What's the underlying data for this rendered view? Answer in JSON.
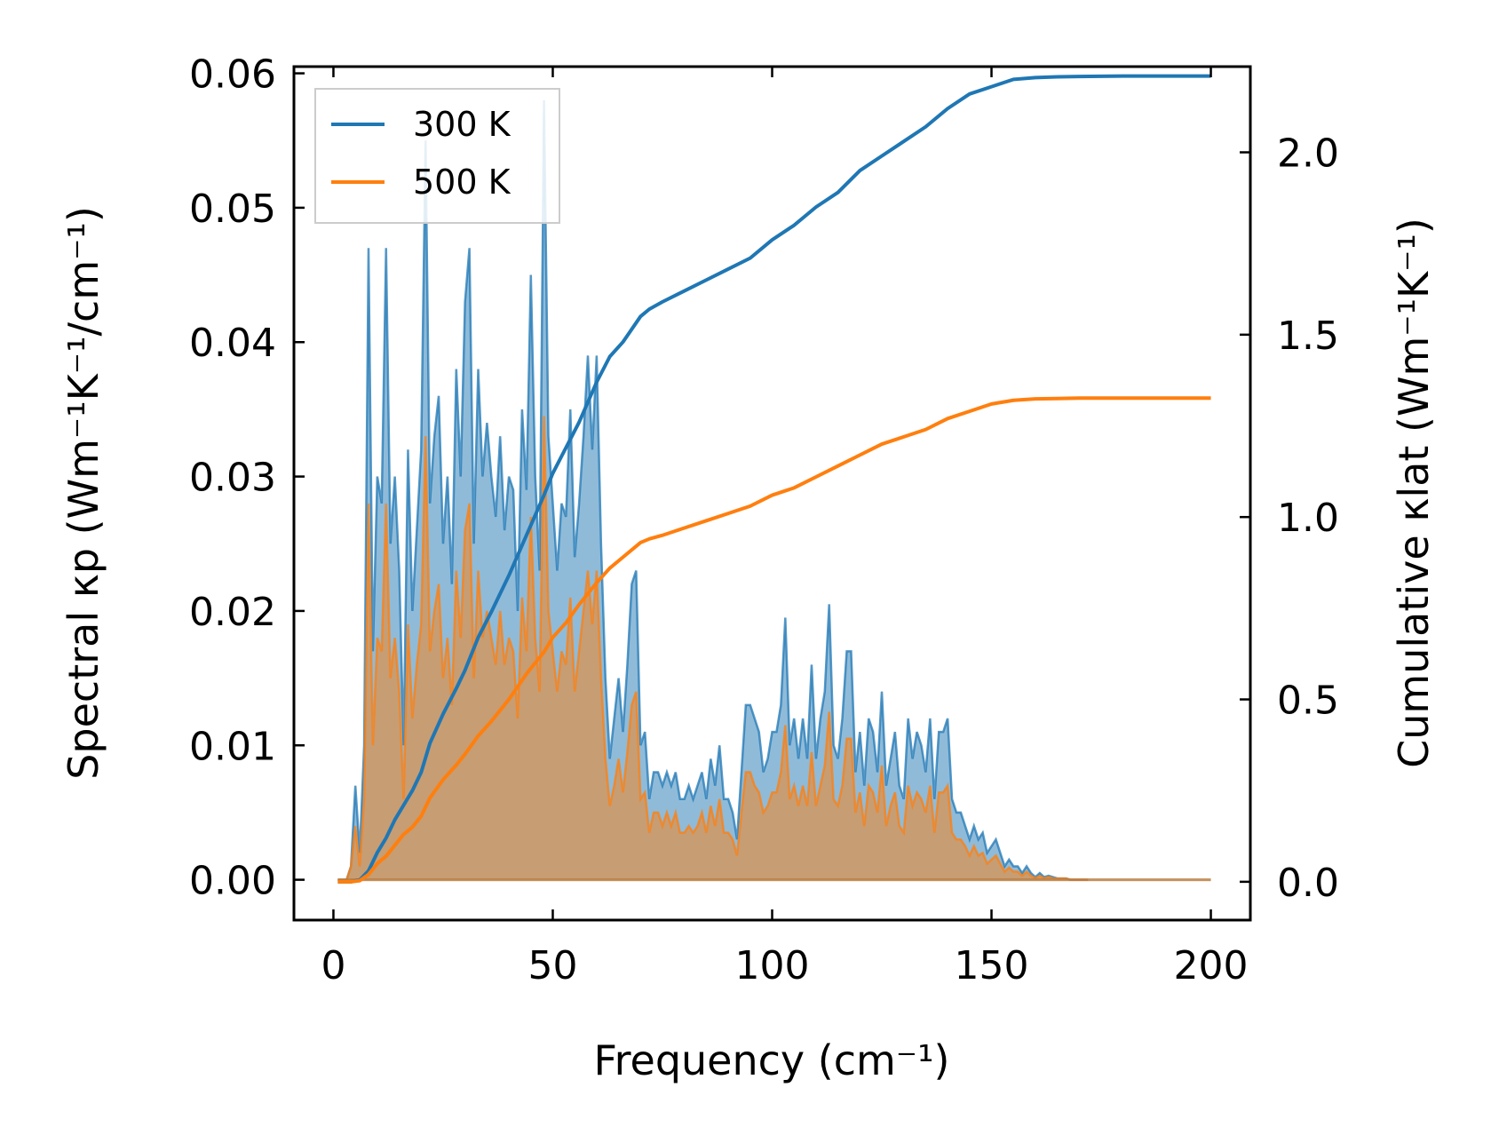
{
  "chart_data": {
    "type": "line",
    "title": "",
    "xlabel": "Frequency (cm⁻¹)",
    "ylabel_left": "Spectral κp (Wm⁻¹K⁻¹/cm⁻¹)",
    "ylabel_right": "Cumulative κlat (Wm⁻¹K⁻¹)",
    "xlim": [
      -9,
      209
    ],
    "ylim_left": [
      -0.003,
      0.0605
    ],
    "ylim_right": [
      -0.105,
      2.235
    ],
    "xticks": [
      0,
      50,
      100,
      150,
      200
    ],
    "xtick_labels": [
      "0",
      "50",
      "100",
      "150",
      "200"
    ],
    "yticks_left": [
      0.0,
      0.01,
      0.02,
      0.03,
      0.04,
      0.05,
      0.06
    ],
    "ytick_labels_left": [
      "0.00",
      "0.01",
      "0.02",
      "0.03",
      "0.04",
      "0.05",
      "0.06"
    ],
    "yticks_right": [
      0.0,
      0.5,
      1.0,
      1.5,
      2.0
    ],
    "ytick_labels_right": [
      "0.0",
      "0.5",
      "1.0",
      "1.5",
      "2.0"
    ],
    "legend_position": "top-left",
    "legend": [
      "300 K",
      "500 K"
    ],
    "spectral_x": [
      1,
      2,
      3,
      4,
      5,
      6,
      7,
      8,
      9,
      10,
      11,
      12,
      13,
      14,
      15,
      16,
      17,
      18,
      19,
      20,
      21,
      22,
      23,
      24,
      25,
      26,
      27,
      28,
      29,
      30,
      31,
      32,
      33,
      34,
      35,
      36,
      37,
      38,
      39,
      40,
      41,
      42,
      43,
      44,
      45,
      46,
      47,
      48,
      49,
      50,
      51,
      52,
      53,
      54,
      55,
      56,
      57,
      58,
      59,
      60,
      61,
      62,
      63,
      64,
      65,
      66,
      67,
      68,
      69,
      70,
      71,
      72,
      73,
      74,
      75,
      76,
      77,
      78,
      79,
      80,
      81,
      82,
      83,
      84,
      85,
      86,
      87,
      88,
      89,
      90,
      91,
      92,
      93,
      94,
      95,
      96,
      97,
      98,
      99,
      100,
      101,
      102,
      103,
      104,
      105,
      106,
      107,
      108,
      109,
      110,
      111,
      112,
      113,
      114,
      115,
      116,
      117,
      118,
      119,
      120,
      121,
      122,
      123,
      124,
      125,
      126,
      127,
      128,
      129,
      130,
      131,
      132,
      133,
      134,
      135,
      136,
      137,
      138,
      139,
      140,
      141,
      142,
      143,
      144,
      145,
      146,
      147,
      148,
      149,
      150,
      151,
      152,
      153,
      154,
      155,
      156,
      157,
      158,
      159,
      160,
      161,
      162,
      163,
      164,
      165,
      166,
      167,
      168,
      169,
      170,
      171,
      172,
      173,
      174,
      175,
      176,
      177,
      178,
      179,
      180,
      185,
      190,
      195,
      200
    ],
    "series": [
      {
        "name": "300 K",
        "color": "#1f77b4",
        "fill_color": "#1f77b4",
        "spectral": [
          0.0,
          0.0,
          0.0,
          0.001,
          0.007,
          0.002,
          0.01,
          0.047,
          0.017,
          0.03,
          0.028,
          0.047,
          0.025,
          0.03,
          0.023,
          0.01,
          0.032,
          0.02,
          0.026,
          0.032,
          0.055,
          0.028,
          0.033,
          0.036,
          0.025,
          0.03,
          0.022,
          0.038,
          0.03,
          0.043,
          0.047,
          0.025,
          0.038,
          0.03,
          0.034,
          0.03,
          0.027,
          0.033,
          0.026,
          0.03,
          0.029,
          0.02,
          0.035,
          0.029,
          0.045,
          0.03,
          0.023,
          0.058,
          0.033,
          0.028,
          0.023,
          0.028,
          0.027,
          0.035,
          0.024,
          0.028,
          0.033,
          0.039,
          0.032,
          0.039,
          0.025,
          0.015,
          0.009,
          0.012,
          0.015,
          0.011,
          0.016,
          0.022,
          0.023,
          0.01,
          0.011,
          0.006,
          0.008,
          0.008,
          0.007,
          0.008,
          0.007,
          0.008,
          0.006,
          0.006,
          0.007,
          0.006,
          0.007,
          0.008,
          0.006,
          0.009,
          0.007,
          0.01,
          0.006,
          0.006,
          0.005,
          0.003,
          0.008,
          0.013,
          0.013,
          0.012,
          0.011,
          0.008,
          0.009,
          0.011,
          0.011,
          0.013,
          0.0195,
          0.01,
          0.012,
          0.009,
          0.012,
          0.009,
          0.016,
          0.009,
          0.012,
          0.014,
          0.0205,
          0.01,
          0.009,
          0.012,
          0.017,
          0.017,
          0.008,
          0.011,
          0.007,
          0.012,
          0.011,
          0.008,
          0.014,
          0.007,
          0.009,
          0.011,
          0.007,
          0.006,
          0.012,
          0.009,
          0.011,
          0.01,
          0.008,
          0.012,
          0.006,
          0.011,
          0.011,
          0.012,
          0.006,
          0.005,
          0.005,
          0.004,
          0.003,
          0.004,
          0.003,
          0.0035,
          0.002,
          0.0025,
          0.003,
          0.002,
          0.001,
          0.0015,
          0.001,
          0.001,
          0.0005,
          0.001,
          0.0005,
          0.0002,
          0.0005,
          0.0002,
          0.0003,
          0.0002,
          0.0001,
          0.0001,
          0.0001,
          0.0,
          0.0,
          0.0,
          0.0,
          0.0
        ]
      },
      {
        "name": "500 K",
        "color": "#ff7f0e",
        "fill_color": "#ff7f0e",
        "spectral": [
          0.0,
          0.0,
          0.0,
          0.001,
          0.004,
          0.001,
          0.006,
          0.028,
          0.01,
          0.018,
          0.017,
          0.028,
          0.015,
          0.018,
          0.014,
          0.006,
          0.019,
          0.012,
          0.016,
          0.019,
          0.033,
          0.017,
          0.02,
          0.022,
          0.015,
          0.018,
          0.013,
          0.023,
          0.018,
          0.026,
          0.028,
          0.015,
          0.023,
          0.018,
          0.02,
          0.018,
          0.016,
          0.02,
          0.016,
          0.018,
          0.017,
          0.012,
          0.021,
          0.017,
          0.027,
          0.018,
          0.014,
          0.0345,
          0.02,
          0.017,
          0.014,
          0.017,
          0.016,
          0.021,
          0.014,
          0.017,
          0.02,
          0.023,
          0.019,
          0.023,
          0.015,
          0.009,
          0.0055,
          0.007,
          0.009,
          0.0065,
          0.0095,
          0.013,
          0.014,
          0.006,
          0.0065,
          0.0035,
          0.005,
          0.005,
          0.004,
          0.005,
          0.004,
          0.005,
          0.0035,
          0.0035,
          0.004,
          0.0035,
          0.004,
          0.005,
          0.0035,
          0.0055,
          0.004,
          0.006,
          0.0035,
          0.0035,
          0.003,
          0.0018,
          0.005,
          0.008,
          0.008,
          0.007,
          0.0065,
          0.005,
          0.0055,
          0.0065,
          0.0065,
          0.008,
          0.0115,
          0.006,
          0.007,
          0.0055,
          0.007,
          0.0055,
          0.0095,
          0.0055,
          0.007,
          0.0085,
          0.0125,
          0.006,
          0.0055,
          0.007,
          0.0105,
          0.0105,
          0.005,
          0.0065,
          0.004,
          0.007,
          0.0065,
          0.005,
          0.0085,
          0.004,
          0.0055,
          0.0065,
          0.004,
          0.0035,
          0.007,
          0.0055,
          0.0065,
          0.006,
          0.005,
          0.007,
          0.0035,
          0.0065,
          0.0065,
          0.007,
          0.0035,
          0.003,
          0.003,
          0.0025,
          0.0018,
          0.0025,
          0.0018,
          0.002,
          0.0012,
          0.0015,
          0.0018,
          0.0012,
          0.0006,
          0.0009,
          0.0006,
          0.0006,
          0.0003,
          0.0006,
          0.0003,
          0.0001,
          0.0003,
          0.0001,
          0.0002,
          0.0001,
          0.0001,
          0.0001,
          0.0001,
          0.0,
          0.0,
          0.0,
          0.0,
          0.0
        ]
      }
    ],
    "cumulative_x": [
      1,
      4,
      6,
      8,
      10,
      12,
      14,
      16,
      18,
      20,
      22,
      25,
      28,
      30,
      33,
      36,
      40,
      44,
      48,
      50,
      53,
      56,
      60,
      63,
      66,
      70,
      72,
      75,
      80,
      85,
      90,
      95,
      100,
      105,
      110,
      115,
      120,
      125,
      130,
      135,
      140,
      145,
      150,
      155,
      160,
      165,
      170,
      180,
      190,
      200
    ],
    "cumulative": [
      {
        "name": "300 K",
        "values": [
          0.0,
          0.0,
          0.005,
          0.03,
          0.08,
          0.12,
          0.17,
          0.21,
          0.25,
          0.3,
          0.38,
          0.46,
          0.53,
          0.58,
          0.67,
          0.74,
          0.84,
          0.95,
          1.06,
          1.12,
          1.19,
          1.26,
          1.37,
          1.44,
          1.48,
          1.55,
          1.57,
          1.59,
          1.62,
          1.65,
          1.68,
          1.71,
          1.76,
          1.8,
          1.85,
          1.89,
          1.95,
          1.99,
          2.03,
          2.07,
          2.12,
          2.16,
          2.18,
          2.2,
          2.205,
          2.207,
          2.208,
          2.209,
          2.209,
          2.209
        ]
      },
      {
        "name": "500 K",
        "values": [
          0.0,
          0.0,
          0.003,
          0.02,
          0.05,
          0.07,
          0.1,
          0.13,
          0.15,
          0.18,
          0.23,
          0.28,
          0.32,
          0.35,
          0.4,
          0.44,
          0.5,
          0.57,
          0.63,
          0.67,
          0.71,
          0.76,
          0.82,
          0.86,
          0.89,
          0.93,
          0.94,
          0.95,
          0.97,
          0.99,
          1.01,
          1.03,
          1.06,
          1.08,
          1.11,
          1.14,
          1.17,
          1.2,
          1.22,
          1.24,
          1.27,
          1.29,
          1.31,
          1.32,
          1.324,
          1.325,
          1.326,
          1.326,
          1.326,
          1.326
        ]
      }
    ]
  }
}
